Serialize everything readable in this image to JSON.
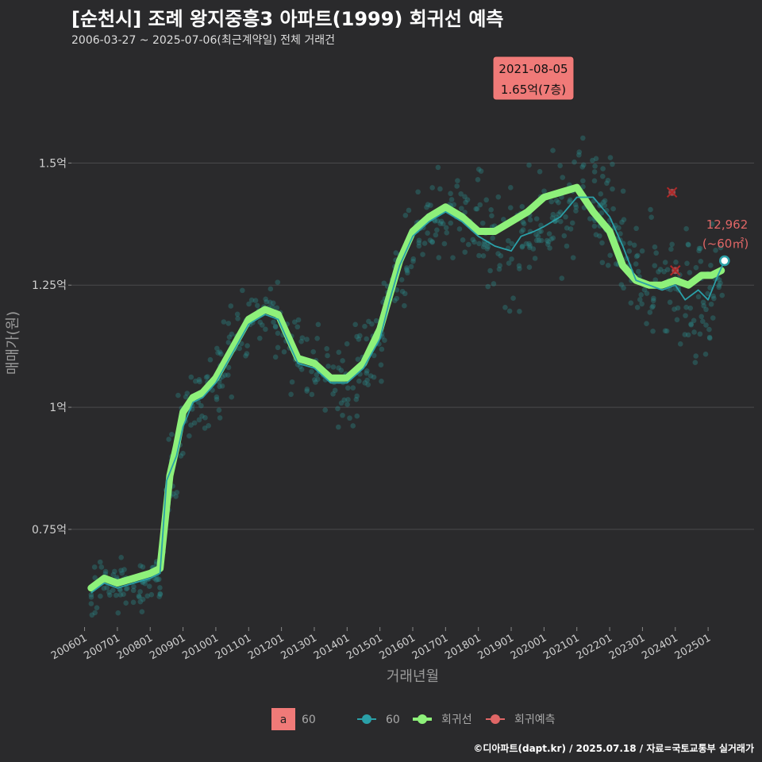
{
  "header": {
    "title": "[순천시] 조례 왕지중흥3 아파트(1999) 회귀선 예측",
    "subtitle": "2006-03-27 ~ 2025-07-06(최근계약일) 전체 거래건"
  },
  "footer": {
    "credit": "©디아파트(dapt.kr) / 2025.07.18 / 자료=국토교통부 실거래가"
  },
  "colors": {
    "background": "#2a2a2c",
    "grid": "#4a4a4c",
    "scatter": "#2a8a8a",
    "trend": "#2aa0a8",
    "regression": "#8ef07a",
    "predict": "#e06666",
    "annotation_bg": "#f07a78"
  },
  "annotation": {
    "date": "2021-08-05",
    "price": "1.65억(7층)"
  },
  "last_label": {
    "count": "12,962",
    "area": "(~60㎡)"
  },
  "legend": {
    "a_key": "a",
    "a_label": "60",
    "trend_label": "60",
    "regression_label": "회귀선",
    "predict_label": "회귀예측"
  },
  "chart_data": {
    "type": "scatter",
    "title": "[순천시] 조례 왕지중흥3 아파트(1999) 회귀선 예측",
    "xlabel": "거래년월",
    "ylabel": "매매가(원)",
    "x_tick_labels": [
      "200601",
      "200701",
      "200801",
      "200901",
      "201001",
      "201101",
      "201201",
      "201301",
      "201401",
      "201501",
      "201601",
      "201701",
      "201801",
      "201901",
      "202001",
      "202101",
      "202201",
      "202301",
      "202401",
      "202501"
    ],
    "y_ticks": [
      0.75,
      1.0,
      1.25,
      1.5
    ],
    "y_tick_labels": [
      "0.75억",
      "1억",
      "1.25억",
      "1.5억"
    ],
    "xlim": [
      2005.6,
      2026.4
    ],
    "ylim": [
      0.55,
      1.72
    ],
    "regression": {
      "name": "회귀선",
      "x": [
        2006.2,
        2006.6,
        2007.0,
        2007.5,
        2008.0,
        2008.3,
        2008.6,
        2008.8,
        2009.0,
        2009.3,
        2009.6,
        2010.0,
        2010.5,
        2011.0,
        2011.5,
        2011.9,
        2012.1,
        2012.5,
        2013.0,
        2013.5,
        2014.0,
        2014.5,
        2015.0,
        2015.3,
        2015.6,
        2016.0,
        2016.5,
        2017.0,
        2017.5,
        2018.0,
        2018.5,
        2019.0,
        2019.5,
        2020.0,
        2020.5,
        2021.0,
        2021.5,
        2022.0,
        2022.4,
        2022.8,
        2023.2,
        2023.6,
        2024.0,
        2024.4,
        2024.8,
        2025.1,
        2025.4
      ],
      "y": [
        0.63,
        0.65,
        0.64,
        0.65,
        0.66,
        0.67,
        0.86,
        0.92,
        0.99,
        1.02,
        1.03,
        1.06,
        1.12,
        1.18,
        1.2,
        1.19,
        1.16,
        1.1,
        1.09,
        1.06,
        1.06,
        1.09,
        1.16,
        1.23,
        1.3,
        1.36,
        1.39,
        1.41,
        1.39,
        1.36,
        1.36,
        1.38,
        1.4,
        1.43,
        1.44,
        1.45,
        1.4,
        1.36,
        1.29,
        1.26,
        1.25,
        1.25,
        1.26,
        1.25,
        1.27,
        1.27,
        1.28
      ]
    },
    "trend60": {
      "name": "60",
      "x": [
        2006.2,
        2006.6,
        2007.0,
        2007.5,
        2008.0,
        2008.3,
        2008.5,
        2008.8,
        2009.0,
        2009.3,
        2009.6,
        2010.0,
        2010.5,
        2011.0,
        2011.5,
        2011.9,
        2012.1,
        2012.5,
        2013.0,
        2013.5,
        2014.0,
        2014.5,
        2015.0,
        2015.3,
        2015.6,
        2016.0,
        2016.5,
        2017.0,
        2017.5,
        2018.0,
        2018.5,
        2019.0,
        2019.3,
        2019.7,
        2020.0,
        2020.5,
        2021.0,
        2021.5,
        2022.0,
        2022.4,
        2022.8,
        2023.2,
        2023.6,
        2024.0,
        2024.3,
        2024.7,
        2025.0,
        2025.3,
        2025.5
      ],
      "y": [
        0.62,
        0.64,
        0.63,
        0.64,
        0.65,
        0.66,
        0.85,
        0.9,
        0.96,
        1.01,
        1.02,
        1.05,
        1.11,
        1.17,
        1.19,
        1.18,
        1.15,
        1.09,
        1.08,
        1.05,
        1.05,
        1.08,
        1.14,
        1.22,
        1.29,
        1.35,
        1.38,
        1.4,
        1.38,
        1.35,
        1.33,
        1.32,
        1.35,
        1.36,
        1.37,
        1.39,
        1.43,
        1.43,
        1.39,
        1.33,
        1.26,
        1.25,
        1.24,
        1.25,
        1.22,
        1.24,
        1.22,
        1.27,
        1.3
      ]
    },
    "predictions": {
      "name": "회귀예측",
      "x": [
        2023.9,
        2024.0
      ],
      "y": [
        1.44,
        1.28
      ]
    },
    "last_point": {
      "x": 2025.5,
      "y": 1.3
    }
  }
}
